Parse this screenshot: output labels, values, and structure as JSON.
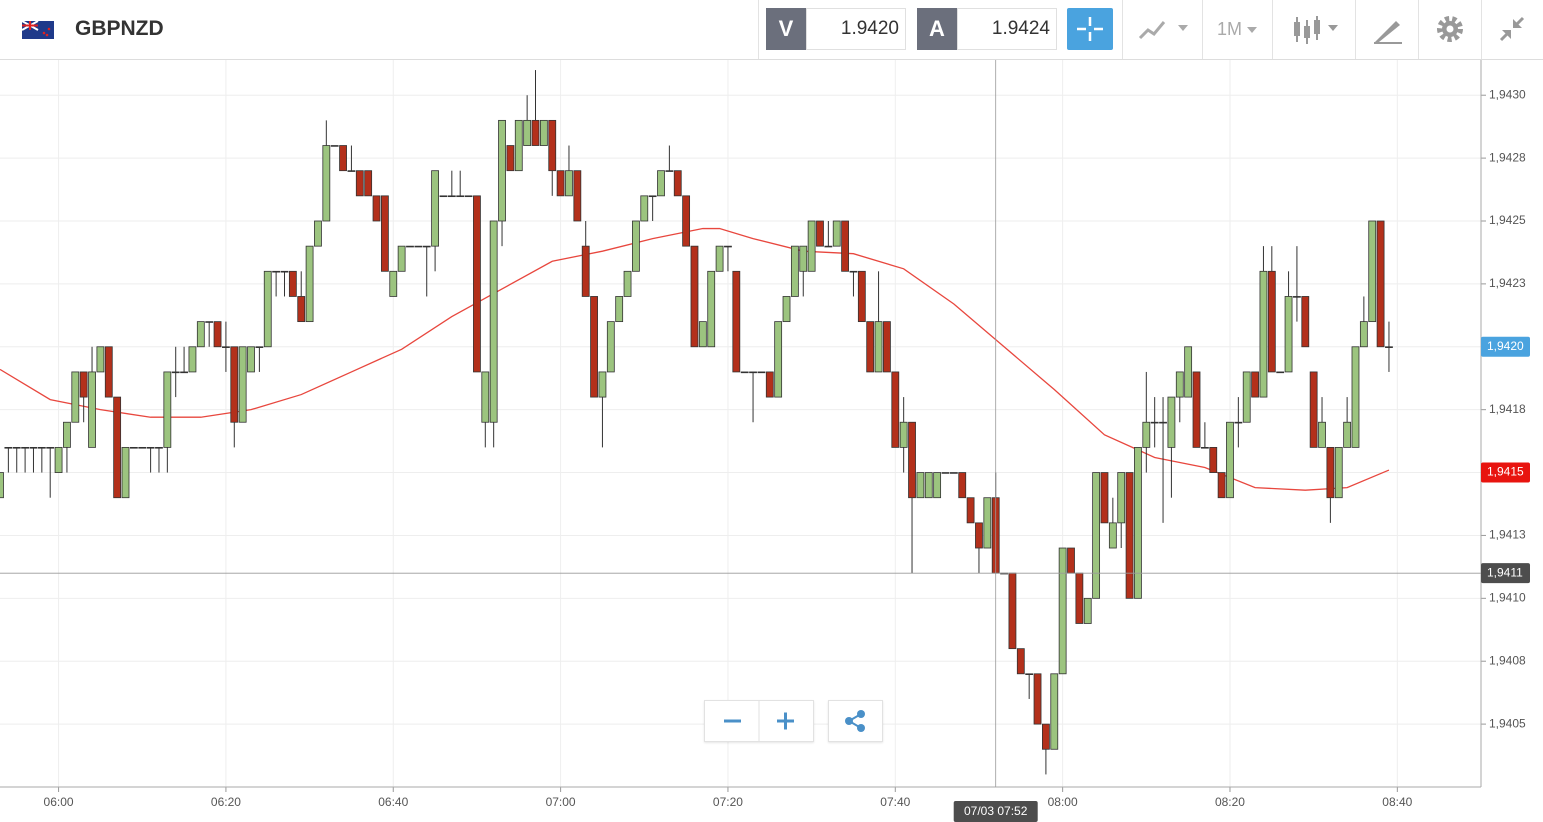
{
  "toolbar": {
    "symbol": "GBPNZD",
    "bid": {
      "label": "V",
      "value": "1.9420"
    },
    "ask": {
      "label": "A",
      "value": "1.9424"
    },
    "timeframe": "1M"
  },
  "chart_data": {
    "type": "candlestick",
    "up_color": "#9cc47f",
    "down_color": "#b3301b",
    "grid": true,
    "xlim": [
      "05:53",
      "08:50"
    ],
    "xticks": [
      "06:00",
      "06:20",
      "06:40",
      "07:00",
      "07:20",
      "07:40",
      "08:00",
      "08:20",
      "08:40"
    ],
    "ylim": [
      1.94025,
      1.94314
    ],
    "yticks": [
      {
        "value": 1.9405,
        "label": "1,9405"
      },
      {
        "value": 1.94075,
        "label": "1,9408"
      },
      {
        "value": 1.941,
        "label": "1,9410"
      },
      {
        "value": 1.94125,
        "label": "1,9413"
      },
      {
        "value": 1.9415,
        "label": "1,9415"
      },
      {
        "value": 1.94175,
        "label": "1,9418"
      },
      {
        "value": 1.942,
        "label": "1,9420"
      },
      {
        "value": 1.94225,
        "label": "1,9423"
      },
      {
        "value": 1.9425,
        "label": "1,9425"
      },
      {
        "value": 1.94275,
        "label": "1,9428"
      },
      {
        "value": 1.943,
        "label": "1,9430"
      }
    ],
    "x": [
      "05:53",
      "05:54",
      "05:55",
      "05:56",
      "05:57",
      "05:58",
      "05:59",
      "06:00",
      "06:01",
      "06:02",
      "06:03",
      "06:04",
      "06:05",
      "06:06",
      "06:07",
      "06:08",
      "06:09",
      "06:10",
      "06:11",
      "06:12",
      "06:13",
      "06:14",
      "06:15",
      "06:16",
      "06:17",
      "06:18",
      "06:19",
      "06:20",
      "06:21",
      "06:22",
      "06:23",
      "06:24",
      "06:25",
      "06:26",
      "06:27",
      "06:28",
      "06:29",
      "06:30",
      "06:31",
      "06:32",
      "06:33",
      "06:34",
      "06:35",
      "06:36",
      "06:37",
      "06:38",
      "06:39",
      "06:40",
      "06:41",
      "06:42",
      "06:43",
      "06:44",
      "06:45",
      "06:46",
      "06:47",
      "06:48",
      "06:49",
      "06:50",
      "06:51",
      "06:52",
      "06:53",
      "06:54",
      "06:55",
      "06:56",
      "06:57",
      "06:58",
      "06:59",
      "07:00",
      "07:01",
      "07:02",
      "07:03",
      "07:04",
      "07:05",
      "07:06",
      "07:07",
      "07:08",
      "07:09",
      "07:10",
      "07:11",
      "07:12",
      "07:13",
      "07:14",
      "07:15",
      "07:16",
      "07:17",
      "07:18",
      "07:19",
      "07:20",
      "07:21",
      "07:22",
      "07:23",
      "07:24",
      "07:25",
      "07:26",
      "07:27",
      "07:28",
      "07:29",
      "07:30",
      "07:31",
      "07:32",
      "07:33",
      "07:34",
      "07:35",
      "07:36",
      "07:37",
      "07:38",
      "07:39",
      "07:40",
      "07:41",
      "07:42",
      "07:43",
      "07:44",
      "07:45",
      "07:46",
      "07:47",
      "07:48",
      "07:49",
      "07:50",
      "07:51",
      "07:52",
      "07:53",
      "07:54",
      "07:55",
      "07:56",
      "07:57",
      "07:58",
      "07:59",
      "08:00",
      "08:01",
      "08:02",
      "08:03",
      "08:04",
      "08:05",
      "08:06",
      "08:07",
      "08:08",
      "08:09",
      "08:10",
      "08:11",
      "08:12",
      "08:13",
      "08:14",
      "08:15",
      "08:16",
      "08:17",
      "08:18",
      "08:19",
      "08:20",
      "08:21",
      "08:22",
      "08:23",
      "08:24",
      "08:25",
      "08:26",
      "08:27",
      "08:28",
      "08:29",
      "08:30",
      "08:31",
      "08:32",
      "08:33",
      "08:34",
      "08:35",
      "08:36",
      "08:37",
      "08:38",
      "08:39"
    ],
    "ohlc": [
      [
        1.9414,
        1.9415,
        1.9414,
        1.9415
      ],
      [
        1.9416,
        1.9416,
        1.9415,
        1.9416
      ],
      [
        1.9416,
        1.9416,
        1.9415,
        1.9416
      ],
      [
        1.9416,
        1.9416,
        1.9415,
        1.9416
      ],
      [
        1.9416,
        1.9416,
        1.9415,
        1.9416
      ],
      [
        1.9416,
        1.9416,
        1.9415,
        1.9416
      ],
      [
        1.9416,
        1.9416,
        1.9414,
        1.9416
      ],
      [
        1.9415,
        1.9416,
        1.9415,
        1.9416
      ],
      [
        1.9416,
        1.9417,
        1.9415,
        1.9417
      ],
      [
        1.9417,
        1.9419,
        1.9417,
        1.9419
      ],
      [
        1.9419,
        1.9419,
        1.9417,
        1.9418
      ],
      [
        1.9416,
        1.942,
        1.9416,
        1.9419
      ],
      [
        1.9419,
        1.942,
        1.9419,
        1.942
      ],
      [
        1.942,
        1.942,
        1.9418,
        1.9418
      ],
      [
        1.9418,
        1.9418,
        1.9414,
        1.9414
      ],
      [
        1.9414,
        1.9416,
        1.9414,
        1.9416
      ],
      [
        1.9416,
        1.9416,
        1.9416,
        1.9416
      ],
      [
        1.9416,
        1.9416,
        1.9416,
        1.9416
      ],
      [
        1.9416,
        1.9416,
        1.9415,
        1.9416
      ],
      [
        1.9416,
        1.9416,
        1.9415,
        1.9416
      ],
      [
        1.9416,
        1.9419,
        1.9415,
        1.9419
      ],
      [
        1.9419,
        1.942,
        1.9418,
        1.9419
      ],
      [
        1.9419,
        1.942,
        1.9419,
        1.9419
      ],
      [
        1.9419,
        1.942,
        1.9419,
        1.942
      ],
      [
        1.942,
        1.9421,
        1.942,
        1.9421
      ],
      [
        1.9421,
        1.9421,
        1.942,
        1.9421
      ],
      [
        1.9421,
        1.9421,
        1.942,
        1.942
      ],
      [
        1.942,
        1.9421,
        1.9419,
        1.942
      ],
      [
        1.942,
        1.942,
        1.9416,
        1.9417
      ],
      [
        1.9417,
        1.942,
        1.9417,
        1.942
      ],
      [
        1.9419,
        1.942,
        1.9419,
        1.942
      ],
      [
        1.942,
        1.942,
        1.9419,
        1.942
      ],
      [
        1.942,
        1.9423,
        1.942,
        1.9423
      ],
      [
        1.9423,
        1.9423,
        1.9422,
        1.9423
      ],
      [
        1.9423,
        1.9423,
        1.9422,
        1.9423
      ],
      [
        1.9423,
        1.9423,
        1.9422,
        1.9422
      ],
      [
        1.9422,
        1.9423,
        1.9421,
        1.9421
      ],
      [
        1.9421,
        1.9424,
        1.9421,
        1.9424
      ],
      [
        1.9424,
        1.9425,
        1.9424,
        1.9425
      ],
      [
        1.9425,
        1.9429,
        1.9425,
        1.9428
      ],
      [
        1.9428,
        1.9428,
        1.9428,
        1.9428
      ],
      [
        1.9428,
        1.9428,
        1.9427,
        1.9427
      ],
      [
        1.9427,
        1.9428,
        1.9427,
        1.9427
      ],
      [
        1.9427,
        1.9427,
        1.9426,
        1.9426
      ],
      [
        1.9427,
        1.9427,
        1.9426,
        1.9426
      ],
      [
        1.9426,
        1.9426,
        1.9425,
        1.9425
      ],
      [
        1.9426,
        1.9426,
        1.9423,
        1.9423
      ],
      [
        1.9422,
        1.9423,
        1.9422,
        1.9423
      ],
      [
        1.9423,
        1.9424,
        1.9423,
        1.9424
      ],
      [
        1.9424,
        1.9424,
        1.9424,
        1.9424
      ],
      [
        1.9424,
        1.9424,
        1.9424,
        1.9424
      ],
      [
        1.9424,
        1.9424,
        1.9422,
        1.9424
      ],
      [
        1.9424,
        1.9427,
        1.9423,
        1.9427
      ],
      [
        1.9426,
        1.9426,
        1.9426,
        1.9426
      ],
      [
        1.9426,
        1.9427,
        1.9426,
        1.9426
      ],
      [
        1.9426,
        1.9427,
        1.9426,
        1.9426
      ],
      [
        1.9426,
        1.9426,
        1.9426,
        1.9426
      ],
      [
        1.9426,
        1.9426,
        1.9419,
        1.9419
      ],
      [
        1.9417,
        1.9419,
        1.9416,
        1.9419
      ],
      [
        1.9417,
        1.9425,
        1.9416,
        1.9425
      ],
      [
        1.9425,
        1.9429,
        1.9424,
        1.9429
      ],
      [
        1.9428,
        1.9428,
        1.9427,
        1.9427
      ],
      [
        1.9427,
        1.9429,
        1.9427,
        1.9429
      ],
      [
        1.9428,
        1.943,
        1.9428,
        1.9429
      ],
      [
        1.9429,
        1.9431,
        1.9428,
        1.9428
      ],
      [
        1.9428,
        1.9429,
        1.9428,
        1.9429
      ],
      [
        1.9429,
        1.9429,
        1.9426,
        1.9427
      ],
      [
        1.9427,
        1.9427,
        1.9426,
        1.9426
      ],
      [
        1.9426,
        1.9428,
        1.9426,
        1.9427
      ],
      [
        1.9427,
        1.9427,
        1.9425,
        1.9425
      ],
      [
        1.9424,
        1.9425,
        1.9422,
        1.9422
      ],
      [
        1.9422,
        1.9422,
        1.9418,
        1.9418
      ],
      [
        1.9418,
        1.9419,
        1.9416,
        1.9419
      ],
      [
        1.9419,
        1.9421,
        1.9419,
        1.9421
      ],
      [
        1.9421,
        1.9422,
        1.9421,
        1.9422
      ],
      [
        1.9422,
        1.9423,
        1.9422,
        1.9423
      ],
      [
        1.9423,
        1.9425,
        1.9423,
        1.9425
      ],
      [
        1.9425,
        1.9426,
        1.9425,
        1.9426
      ],
      [
        1.9426,
        1.9426,
        1.9425,
        1.9426
      ],
      [
        1.9426,
        1.9427,
        1.9426,
        1.9427
      ],
      [
        1.9427,
        1.9428,
        1.9427,
        1.9427
      ],
      [
        1.9427,
        1.9427,
        1.9426,
        1.9426
      ],
      [
        1.9426,
        1.9426,
        1.9424,
        1.9424
      ],
      [
        1.9424,
        1.9424,
        1.942,
        1.942
      ],
      [
        1.942,
        1.9421,
        1.942,
        1.9421
      ],
      [
        1.942,
        1.9423,
        1.942,
        1.9423
      ],
      [
        1.9423,
        1.9424,
        1.9423,
        1.9424
      ],
      [
        1.9424,
        1.9424,
        1.9423,
        1.9424
      ],
      [
        1.9423,
        1.9423,
        1.9419,
        1.9419
      ],
      [
        1.9419,
        1.9419,
        1.9419,
        1.9419
      ],
      [
        1.9419,
        1.9419,
        1.9417,
        1.9419
      ],
      [
        1.9419,
        1.9419,
        1.9419,
        1.9419
      ],
      [
        1.9419,
        1.9419,
        1.9418,
        1.9418
      ],
      [
        1.9418,
        1.9421,
        1.9418,
        1.9421
      ],
      [
        1.9421,
        1.9422,
        1.9421,
        1.9422
      ],
      [
        1.9422,
        1.9424,
        1.9422,
        1.9424
      ],
      [
        1.9423,
        1.9424,
        1.9422,
        1.9424
      ],
      [
        1.9423,
        1.9425,
        1.9423,
        1.9425
      ],
      [
        1.9425,
        1.9425,
        1.9424,
        1.9424
      ],
      [
        1.9424,
        1.9425,
        1.9424,
        1.9424
      ],
      [
        1.9424,
        1.9425,
        1.9424,
        1.9425
      ],
      [
        1.9425,
        1.9425,
        1.9423,
        1.9423
      ],
      [
        1.9423,
        1.9423,
        1.9422,
        1.9423
      ],
      [
        1.9423,
        1.9423,
        1.9421,
        1.9421
      ],
      [
        1.9421,
        1.9421,
        1.9419,
        1.9419
      ],
      [
        1.9419,
        1.9423,
        1.9419,
        1.9421
      ],
      [
        1.9421,
        1.9421,
        1.9419,
        1.9419
      ],
      [
        1.9419,
        1.9419,
        1.9416,
        1.9416
      ],
      [
        1.9416,
        1.9418,
        1.9415,
        1.9417
      ],
      [
        1.9417,
        1.9417,
        1.9411,
        1.9414
      ],
      [
        1.9414,
        1.9415,
        1.9414,
        1.9415
      ],
      [
        1.9414,
        1.9415,
        1.9414,
        1.9415
      ],
      [
        1.9414,
        1.9415,
        1.9414,
        1.9415
      ],
      [
        1.9415,
        1.9415,
        1.9415,
        1.9415
      ],
      [
        1.9415,
        1.9415,
        1.9415,
        1.9415
      ],
      [
        1.9415,
        1.9415,
        1.9414,
        1.9414
      ],
      [
        1.9414,
        1.9414,
        1.9413,
        1.9413
      ],
      [
        1.9413,
        1.9413,
        1.9411,
        1.9412
      ],
      [
        1.9412,
        1.9414,
        1.9412,
        1.9414
      ],
      [
        1.9414,
        1.9415,
        1.9411,
        1.9411
      ],
      [
        1.9411,
        1.9411,
        1.9411,
        1.9411
      ],
      [
        1.9411,
        1.9411,
        1.9408,
        1.9408
      ],
      [
        1.9408,
        1.9408,
        1.9407,
        1.9407
      ],
      [
        1.9407,
        1.9407,
        1.9406,
        1.9407
      ],
      [
        1.9407,
        1.9407,
        1.9405,
        1.9405
      ],
      [
        1.9405,
        1.9405,
        1.9403,
        1.9404
      ],
      [
        1.9404,
        1.9407,
        1.9404,
        1.9407
      ],
      [
        1.9407,
        1.9412,
        1.9407,
        1.9412
      ],
      [
        1.9412,
        1.9412,
        1.9411,
        1.9411
      ],
      [
        1.9411,
        1.9411,
        1.9409,
        1.9409
      ],
      [
        1.9409,
        1.941,
        1.9409,
        1.941
      ],
      [
        1.941,
        1.9415,
        1.941,
        1.9415
      ],
      [
        1.9415,
        1.9415,
        1.9413,
        1.9413
      ],
      [
        1.9412,
        1.9414,
        1.9412,
        1.9413
      ],
      [
        1.9413,
        1.9415,
        1.9412,
        1.9415
      ],
      [
        1.9415,
        1.9415,
        1.941,
        1.941
      ],
      [
        1.941,
        1.9416,
        1.941,
        1.9416
      ],
      [
        1.9416,
        1.9419,
        1.9415,
        1.9417
      ],
      [
        1.9417,
        1.9418,
        1.9416,
        1.9417
      ],
      [
        1.9417,
        1.9418,
        1.9413,
        1.9417
      ],
      [
        1.9416,
        1.9418,
        1.9414,
        1.9418
      ],
      [
        1.9418,
        1.9419,
        1.9417,
        1.9419
      ],
      [
        1.9418,
        1.942,
        1.9418,
        1.942
      ],
      [
        1.9419,
        1.9419,
        1.9416,
        1.9416
      ],
      [
        1.9416,
        1.9417,
        1.9416,
        1.9416
      ],
      [
        1.9416,
        1.9416,
        1.9415,
        1.9415
      ],
      [
        1.9415,
        1.9415,
        1.9414,
        1.9414
      ],
      [
        1.9414,
        1.9417,
        1.9414,
        1.9417
      ],
      [
        1.9417,
        1.9418,
        1.9416,
        1.9417
      ],
      [
        1.9417,
        1.9419,
        1.9417,
        1.9419
      ],
      [
        1.9419,
        1.9419,
        1.9418,
        1.9418
      ],
      [
        1.9418,
        1.9424,
        1.9418,
        1.9423
      ],
      [
        1.9423,
        1.9424,
        1.9419,
        1.9419
      ],
      [
        1.9419,
        1.9419,
        1.9419,
        1.9419
      ],
      [
        1.9419,
        1.9423,
        1.9419,
        1.9422
      ],
      [
        1.9422,
        1.9424,
        1.9421,
        1.9422
      ],
      [
        1.9422,
        1.9422,
        1.942,
        1.942
      ],
      [
        1.9419,
        1.9419,
        1.9416,
        1.9416
      ],
      [
        1.9416,
        1.9418,
        1.9416,
        1.9417
      ],
      [
        1.9416,
        1.9416,
        1.9413,
        1.9414
      ],
      [
        1.9414,
        1.9416,
        1.9414,
        1.9416
      ],
      [
        1.9416,
        1.9418,
        1.9416,
        1.9417
      ],
      [
        1.9416,
        1.942,
        1.9416,
        1.942
      ],
      [
        1.942,
        1.9422,
        1.942,
        1.9421
      ],
      [
        1.9421,
        1.9425,
        1.9421,
        1.9425
      ],
      [
        1.9425,
        1.9425,
        1.942,
        1.942
      ],
      [
        1.942,
        1.9421,
        1.9419,
        1.942
      ]
    ],
    "ma": {
      "color": "#e8473e",
      "x": [
        "05:53",
        "05:59",
        "06:05",
        "06:11",
        "06:17",
        "06:23",
        "06:29",
        "06:35",
        "06:41",
        "06:47",
        "06:53",
        "06:59",
        "07:05",
        "07:11",
        "07:17",
        "07:19",
        "07:23",
        "07:29",
        "07:35",
        "07:41",
        "07:47",
        "07:53",
        "07:59",
        "08:05",
        "08:11",
        "08:17",
        "08:23",
        "08:29",
        "08:34",
        "08:39"
      ],
      "values": [
        1.94191,
        1.94179,
        1.94175,
        1.94172,
        1.94172,
        1.94175,
        1.94181,
        1.9419,
        1.94199,
        1.94212,
        1.94223,
        1.94234,
        1.94238,
        1.94243,
        1.94247,
        1.94247,
        1.94243,
        1.94238,
        1.94237,
        1.94231,
        1.94217,
        1.942,
        1.94183,
        1.94165,
        1.94156,
        1.94152,
        1.94144,
        1.94143,
        1.94144,
        1.94151
      ]
    },
    "price_tags": [
      {
        "value": 1.942,
        "label": "1,9420",
        "color": "#4aa3df"
      },
      {
        "value": 1.9415,
        "label": "1,9415",
        "color": "#e8140f"
      }
    ],
    "crosshair": {
      "x": "07:52",
      "x_label": "07/03 07:52",
      "y": {
        "value": 1.9411,
        "label": "1,9411"
      }
    }
  }
}
